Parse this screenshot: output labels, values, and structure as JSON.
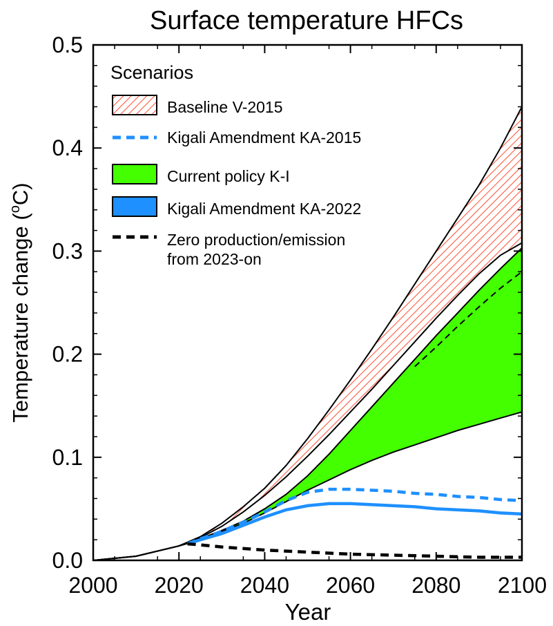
{
  "chart_data": {
    "type": "line",
    "title": "Surface temperature HFCs",
    "xlabel": "Year",
    "ylabel_main": "Temperature change (",
    "ylabel_sup": "o",
    "ylabel_end": "C)",
    "xlim": [
      2000,
      2100
    ],
    "ylim": [
      0,
      0.5
    ],
    "x_ticks": [
      2000,
      2020,
      2040,
      2060,
      2080,
      2100
    ],
    "y_ticks": [
      "0.0",
      "0.1",
      "0.2",
      "0.3",
      "0.4",
      "0.5"
    ],
    "legend": {
      "title": "Scenarios",
      "position": "top-left",
      "entries": [
        {
          "key": "baseline",
          "label": "Baseline V-2015",
          "style": "hatched-band"
        },
        {
          "key": "ka2015",
          "label": "Kigali Amendment KA-2015",
          "style": "dashed-line"
        },
        {
          "key": "ki",
          "label": "Current policy K-I",
          "style": "filled-band"
        },
        {
          "key": "ka2022",
          "label": "Kigali Amendment KA-2022",
          "style": "solid-line"
        },
        {
          "key": "zero",
          "label_lines": [
            "Zero production/emission",
            "from 2023-on"
          ],
          "style": "dashed-line"
        }
      ]
    },
    "colors": {
      "baseline_hatch": "#ff5a3c",
      "ka2015": "#1e90ff",
      "ki_fill": "#44ff00",
      "ka2022": "#1e90ff",
      "zero": "#000000",
      "band_edge": "#000000"
    },
    "series": [
      {
        "key": "baseline_upper",
        "x": [
          2000,
          2010,
          2020,
          2025,
          2030,
          2035,
          2040,
          2045,
          2050,
          2055,
          2060,
          2065,
          2070,
          2075,
          2080,
          2085,
          2090,
          2095,
          2100
        ],
        "y": [
          0.0,
          0.004,
          0.014,
          0.023,
          0.036,
          0.052,
          0.07,
          0.092,
          0.118,
          0.146,
          0.175,
          0.205,
          0.236,
          0.268,
          0.3,
          0.332,
          0.364,
          0.4,
          0.44
        ]
      },
      {
        "key": "baseline_lower",
        "x": [
          2000,
          2010,
          2020,
          2025,
          2030,
          2035,
          2040,
          2045,
          2050,
          2055,
          2060,
          2065,
          2070,
          2075,
          2080,
          2085,
          2090,
          2095,
          2100
        ],
        "y": [
          0.0,
          0.004,
          0.014,
          0.022,
          0.033,
          0.047,
          0.063,
          0.081,
          0.101,
          0.122,
          0.144,
          0.166,
          0.189,
          0.212,
          0.235,
          0.257,
          0.278,
          0.296,
          0.308
        ]
      },
      {
        "key": "ki_upper",
        "x": [
          2000,
          2010,
          2020,
          2025,
          2030,
          2035,
          2040,
          2045,
          2050,
          2055,
          2060,
          2065,
          2070,
          2075,
          2080,
          2085,
          2090,
          2095,
          2100
        ],
        "y": [
          0.0,
          0.004,
          0.014,
          0.021,
          0.029,
          0.038,
          0.05,
          0.064,
          0.082,
          0.103,
          0.126,
          0.149,
          0.172,
          0.195,
          0.218,
          0.24,
          0.262,
          0.283,
          0.303
        ]
      },
      {
        "key": "ki_lower",
        "x": [
          2000,
          2010,
          2020,
          2025,
          2030,
          2035,
          2040,
          2045,
          2050,
          2055,
          2060,
          2065,
          2070,
          2075,
          2080,
          2085,
          2090,
          2095,
          2100
        ],
        "y": [
          0.0,
          0.004,
          0.014,
          0.02,
          0.028,
          0.036,
          0.046,
          0.057,
          0.068,
          0.078,
          0.088,
          0.097,
          0.105,
          0.112,
          0.119,
          0.126,
          0.132,
          0.138,
          0.144
        ]
      },
      {
        "key": "ka2015",
        "name": "Kigali Amendment KA-2015",
        "x": [
          2022,
          2025,
          2030,
          2035,
          2040,
          2045,
          2050,
          2055,
          2060,
          2065,
          2070,
          2075,
          2080,
          2085,
          2090,
          2095,
          2100
        ],
        "y": [
          0.016,
          0.021,
          0.028,
          0.037,
          0.047,
          0.058,
          0.066,
          0.069,
          0.069,
          0.068,
          0.067,
          0.065,
          0.064,
          0.062,
          0.061,
          0.059,
          0.058
        ]
      },
      {
        "key": "ka2022",
        "name": "Kigali Amendment KA-2022",
        "x": [
          2022,
          2025,
          2030,
          2035,
          2040,
          2045,
          2050,
          2055,
          2060,
          2065,
          2070,
          2075,
          2080,
          2085,
          2090,
          2095,
          2100
        ],
        "y": [
          0.016,
          0.02,
          0.026,
          0.034,
          0.042,
          0.049,
          0.053,
          0.055,
          0.055,
          0.054,
          0.053,
          0.052,
          0.05,
          0.049,
          0.048,
          0.046,
          0.045
        ]
      },
      {
        "key": "zero",
        "name": "Zero production/emission from 2023-on",
        "x": [
          2022,
          2025,
          2030,
          2040,
          2050,
          2060,
          2070,
          2080,
          2090,
          2100
        ],
        "y": [
          0.016,
          0.015,
          0.013,
          0.01,
          0.008,
          0.006,
          0.005,
          0.004,
          0.003,
          0.003
        ]
      },
      {
        "key": "extra_dashed",
        "x": [
          2075,
          2080,
          2085,
          2090,
          2095,
          2100
        ],
        "y": [
          0.188,
          0.207,
          0.227,
          0.246,
          0.264,
          0.28
        ]
      }
    ]
  }
}
